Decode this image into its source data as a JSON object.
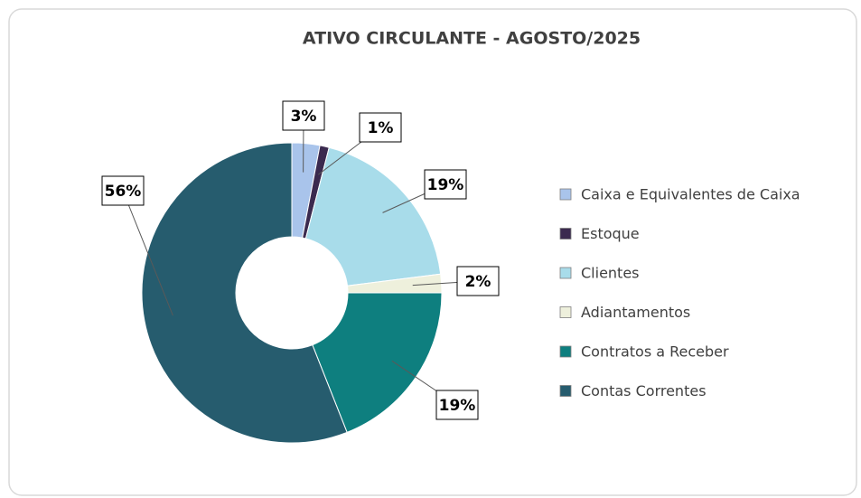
{
  "chart_data": {
    "type": "donut",
    "title": "ATIVO CIRCULANTE  - AGOSTO/2025",
    "categories": [
      "Caixa e Equivalentes de Caixa",
      "Estoque",
      "Clientes",
      "Adiantamentos",
      "Contratos a Receber",
      "Contas Correntes"
    ],
    "values": [
      3,
      1,
      19,
      2,
      19,
      56
    ],
    "value_labels": [
      "3%",
      "1%",
      "19%",
      "2%",
      "19%",
      "56%"
    ],
    "colors": [
      "#a9c4eb",
      "#3b2a4f",
      "#a8dcea",
      "#eef0dc",
      "#0e7f7f",
      "#265c6e"
    ],
    "legend": "right"
  }
}
